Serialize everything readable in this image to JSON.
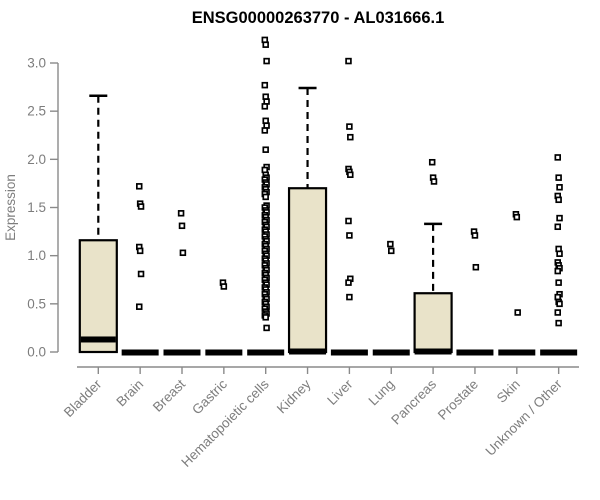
{
  "chart": {
    "title": "ENSG00000263770 - AL031666.1",
    "ylabel": "Expression"
  },
  "colors": {
    "background": "#ffffff",
    "title": "#000000",
    "axis": "#8a8a8a",
    "tick_label": "#7d7d7d",
    "box_fill": "#e9e3c9",
    "box_stroke": "#000000",
    "median": "#000000",
    "outlier_fill": "#ffffff",
    "outlier_stroke": "#000000"
  },
  "chart_data": {
    "type": "boxplot",
    "title": "ENSG00000263770 - AL031666.1",
    "xlabel": "",
    "ylabel": "Expression",
    "ylim": [
      0,
      3.3
    ],
    "grid": false,
    "ytick_labels": [
      "0.0",
      "0.5",
      "1.0",
      "1.5",
      "2.0",
      "2.5",
      "3.0"
    ],
    "categories": [
      "Bladder",
      "Brain",
      "Breast",
      "Gastric",
      "Hematopoietic cells",
      "Kidney",
      "Liver",
      "Lung",
      "Pancreas",
      "Prostate",
      "Skin",
      "Unknown / Other"
    ],
    "series": [
      {
        "name": "Bladder",
        "collapsed": false,
        "q1": 0,
        "median": 0.13,
        "q3": 1.16,
        "whisker_low": 0,
        "whisker_high": 2.66,
        "outliers": []
      },
      {
        "name": "Brain",
        "collapsed": true,
        "q1": 0,
        "median": 0,
        "q3": 0,
        "whisker_low": 0,
        "whisker_high": 0,
        "outliers": [
          1.72,
          1.54,
          1.51,
          1.09,
          1.05,
          0.81,
          0.47
        ]
      },
      {
        "name": "Breast",
        "collapsed": true,
        "q1": 0,
        "median": 0,
        "q3": 0,
        "whisker_low": 0,
        "whisker_high": 0,
        "outliers": [
          1.44,
          1.31,
          1.03
        ]
      },
      {
        "name": "Gastric",
        "collapsed": true,
        "q1": 0,
        "median": 0,
        "q3": 0,
        "whisker_low": 0,
        "whisker_high": 0,
        "outliers": [
          0.72,
          0.68
        ]
      },
      {
        "name": "Hematopoietic cells",
        "collapsed": true,
        "q1": 0,
        "median": 0,
        "q3": 0,
        "whisker_low": 0,
        "whisker_high": 0,
        "outliers": [
          3.24,
          3.19,
          3.02,
          2.77,
          2.65,
          2.6,
          2.55,
          2.4,
          2.35,
          2.3,
          2.1,
          1.92,
          1.89,
          1.84,
          1.81,
          1.79,
          1.76,
          1.74,
          1.71,
          1.69,
          1.66,
          1.64,
          1.61,
          1.52,
          1.5,
          1.47,
          1.45,
          1.42,
          1.4,
          1.37,
          1.35,
          1.32,
          1.3,
          1.27,
          1.25,
          1.22,
          1.2,
          1.17,
          1.15,
          1.12,
          1.1,
          1.07,
          1.05,
          1.02,
          1.0,
          0.97,
          0.95,
          0.92,
          0.9,
          0.87,
          0.85,
          0.82,
          0.8,
          0.77,
          0.75,
          0.72,
          0.7,
          0.67,
          0.65,
          0.62,
          0.6,
          0.57,
          0.55,
          0.52,
          0.5,
          0.47,
          0.45,
          0.42,
          0.4,
          0.38,
          0.36,
          0.25
        ]
      },
      {
        "name": "Kidney",
        "collapsed": false,
        "q1": 0,
        "median": 0.02,
        "q3": 1.7,
        "whisker_low": 0,
        "whisker_high": 2.74,
        "outliers": []
      },
      {
        "name": "Liver",
        "collapsed": true,
        "q1": 0,
        "median": 0,
        "q3": 0,
        "whisker_low": 0,
        "whisker_high": 0,
        "outliers": [
          3.02,
          2.34,
          2.23,
          1.9,
          1.87,
          1.84,
          1.36,
          1.21,
          0.76,
          0.72,
          0.57
        ]
      },
      {
        "name": "Lung",
        "collapsed": true,
        "q1": 0,
        "median": 0,
        "q3": 0,
        "whisker_low": 0,
        "whisker_high": 0,
        "outliers": [
          1.12,
          1.05
        ]
      },
      {
        "name": "Pancreas",
        "collapsed": false,
        "q1": 0,
        "median": 0.02,
        "q3": 0.61,
        "whisker_low": 0,
        "whisker_high": 1.33,
        "outliers": [
          1.97,
          1.81,
          1.77
        ]
      },
      {
        "name": "Prostate",
        "collapsed": true,
        "q1": 0,
        "median": 0,
        "q3": 0,
        "whisker_low": 0,
        "whisker_high": 0,
        "outliers": [
          1.25,
          1.21,
          0.88
        ]
      },
      {
        "name": "Skin",
        "collapsed": true,
        "q1": 0,
        "median": 0,
        "q3": 0,
        "whisker_low": 0,
        "whisker_high": 0,
        "outliers": [
          1.43,
          1.4,
          0.41
        ]
      },
      {
        "name": "Unknown / Other",
        "collapsed": true,
        "q1": 0,
        "median": 0,
        "q3": 0,
        "whisker_low": 0,
        "whisker_high": 0,
        "outliers": [
          2.02,
          1.81,
          1.71,
          1.62,
          1.58,
          1.39,
          1.3,
          1.07,
          1.02,
          0.93,
          0.9,
          0.87,
          0.84,
          0.72,
          0.6,
          0.57,
          0.52,
          0.5,
          0.41,
          0.3
        ]
      }
    ]
  }
}
